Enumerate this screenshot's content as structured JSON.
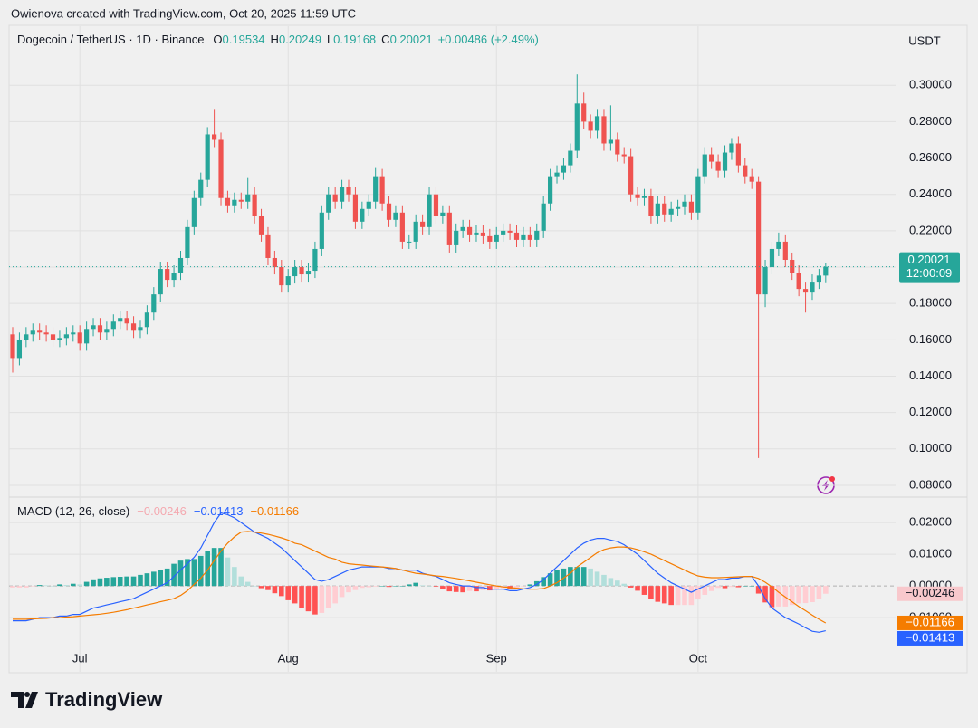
{
  "attribution": "Owienova created with TradingView.com, Oct 20, 2025 11:59 UTC",
  "brand": "TradingView",
  "chart_data": [
    {
      "type": "candlestick",
      "title": "Dogecoin / TetherUS · 1D · Binance",
      "currency": "USDT",
      "ohlc_legend": [
        {
          "label": "O",
          "value": 0.19534
        },
        {
          "label": "H",
          "value": 0.20249
        },
        {
          "label": "L",
          "value": 0.19168
        },
        {
          "label": "C",
          "value": 0.20021
        }
      ],
      "change": "+0.00486 (+2.49%)",
      "countdown": "12:00:09",
      "up_color": "#26a69a",
      "down_color": "#ef5350",
      "grid": true,
      "ylim": [
        0.074,
        0.332
      ],
      "yticks": [
        {
          "value": 0.08,
          "label": "0.08000"
        },
        {
          "value": 0.1,
          "label": "0.10000"
        },
        {
          "value": 0.12,
          "label": "0.12000"
        },
        {
          "value": 0.14,
          "label": "0.14000"
        },
        {
          "value": 0.16,
          "label": "0.16000"
        },
        {
          "value": 0.18,
          "label": "0.18000"
        },
        {
          "value": 0.2,
          "label": "0.20000"
        },
        {
          "value": 0.22,
          "label": "0.22000"
        },
        {
          "value": 0.24,
          "label": "0.24000"
        },
        {
          "value": 0.26,
          "label": "0.26000"
        },
        {
          "value": 0.28,
          "label": "0.28000"
        },
        {
          "value": 0.3,
          "label": "0.30000"
        }
      ],
      "categories": [
        null,
        null,
        null,
        null,
        null,
        null,
        null,
        null,
        null,
        null,
        "Jul",
        null,
        null,
        null,
        null,
        null,
        null,
        null,
        null,
        null,
        null,
        null,
        null,
        null,
        null,
        null,
        null,
        null,
        null,
        null,
        null,
        null,
        null,
        null,
        null,
        null,
        null,
        null,
        null,
        null,
        null,
        "Aug",
        null,
        null,
        null,
        null,
        null,
        null,
        null,
        null,
        null,
        null,
        null,
        null,
        null,
        null,
        null,
        null,
        null,
        null,
        null,
        null,
        null,
        null,
        null,
        null,
        null,
        null,
        null,
        null,
        null,
        null,
        "Sep",
        null,
        null,
        null,
        null,
        null,
        null,
        null,
        null,
        null,
        null,
        null,
        null,
        null,
        null,
        null,
        null,
        null,
        null,
        null,
        null,
        null,
        null,
        null,
        null,
        null,
        null,
        null,
        null,
        null,
        "Oct",
        null,
        null,
        null,
        null,
        null,
        null,
        null,
        null,
        null,
        null,
        null,
        null,
        null,
        null,
        null,
        null,
        null,
        null,
        null
      ],
      "open": [
        0.163,
        0.15,
        0.16,
        0.163,
        0.165,
        0.164,
        0.163,
        0.16,
        0.161,
        0.163,
        0.164,
        0.158,
        0.166,
        0.168,
        0.164,
        0.166,
        0.17,
        0.172,
        0.169,
        0.165,
        0.167,
        0.175,
        0.185,
        0.199,
        0.193,
        0.197,
        0.205,
        0.222,
        0.238,
        0.248,
        0.273,
        0.27,
        0.238,
        0.234,
        0.237,
        0.236,
        0.24,
        0.228,
        0.218,
        0.205,
        0.2,
        0.19,
        0.195,
        0.2,
        0.196,
        0.198,
        0.21,
        0.23,
        0.24,
        0.236,
        0.244,
        0.24,
        0.225,
        0.232,
        0.236,
        0.25,
        0.235,
        0.226,
        0.23,
        0.214,
        0.214,
        0.225,
        0.222,
        0.24,
        0.228,
        0.23,
        0.212,
        0.22,
        0.222,
        0.218,
        0.219,
        0.217,
        0.214,
        0.218,
        0.22,
        0.219,
        0.215,
        0.218,
        0.215,
        0.22,
        0.235,
        0.25,
        0.252,
        0.256,
        0.264,
        0.29,
        0.28,
        0.275,
        0.283,
        0.268,
        0.27,
        0.262,
        0.261,
        0.24,
        0.238,
        0.239,
        0.228,
        0.235,
        0.229,
        0.232,
        0.233,
        0.236,
        0.23,
        0.25,
        0.262,
        0.258,
        0.253,
        0.263,
        0.268,
        0.256,
        0.25,
        0.247,
        0.185,
        0.2,
        0.21,
        0.214,
        0.204,
        0.197,
        0.188,
        0.186,
        0.192,
        0.19534
      ],
      "high": [
        0.167,
        0.164,
        0.167,
        0.169,
        0.169,
        0.168,
        0.167,
        0.165,
        0.167,
        0.168,
        0.168,
        0.17,
        0.172,
        0.172,
        0.17,
        0.174,
        0.176,
        0.176,
        0.173,
        0.171,
        0.179,
        0.189,
        0.203,
        0.203,
        0.201,
        0.209,
        0.226,
        0.242,
        0.252,
        0.277,
        0.287,
        0.274,
        0.242,
        0.241,
        0.241,
        0.249,
        0.244,
        0.232,
        0.222,
        0.209,
        0.204,
        0.199,
        0.204,
        0.204,
        0.202,
        0.214,
        0.234,
        0.244,
        0.244,
        0.248,
        0.248,
        0.244,
        0.236,
        0.24,
        0.255,
        0.254,
        0.239,
        0.234,
        0.234,
        0.218,
        0.229,
        0.229,
        0.244,
        0.244,
        0.234,
        0.234,
        0.224,
        0.226,
        0.226,
        0.223,
        0.223,
        0.221,
        0.222,
        0.224,
        0.224,
        0.223,
        0.222,
        0.222,
        0.224,
        0.239,
        0.254,
        0.256,
        0.26,
        0.268,
        0.306,
        0.296,
        0.284,
        0.287,
        0.287,
        0.289,
        0.274,
        0.266,
        0.265,
        0.244,
        0.243,
        0.243,
        0.239,
        0.239,
        0.236,
        0.237,
        0.24,
        0.24,
        0.254,
        0.266,
        0.266,
        0.262,
        0.267,
        0.271,
        0.272,
        0.26,
        0.254,
        0.25,
        0.204,
        0.214,
        0.219,
        0.218,
        0.208,
        0.201,
        0.192,
        0.196,
        0.199,
        0.20249
      ],
      "low": [
        0.142,
        0.146,
        0.156,
        0.159,
        0.16,
        0.159,
        0.156,
        0.156,
        0.157,
        0.159,
        0.154,
        0.154,
        0.162,
        0.16,
        0.16,
        0.162,
        0.166,
        0.165,
        0.161,
        0.161,
        0.163,
        0.171,
        0.181,
        0.189,
        0.189,
        0.193,
        0.201,
        0.218,
        0.234,
        0.244,
        0.266,
        0.234,
        0.23,
        0.23,
        0.232,
        0.232,
        0.224,
        0.214,
        0.201,
        0.196,
        0.186,
        0.186,
        0.191,
        0.192,
        0.192,
        0.194,
        0.206,
        0.226,
        0.232,
        0.232,
        0.236,
        0.221,
        0.221,
        0.228,
        0.232,
        0.231,
        0.222,
        0.222,
        0.21,
        0.21,
        0.21,
        0.218,
        0.218,
        0.224,
        0.224,
        0.208,
        0.208,
        0.216,
        0.214,
        0.214,
        0.213,
        0.21,
        0.21,
        0.214,
        0.215,
        0.211,
        0.211,
        0.211,
        0.211,
        0.216,
        0.231,
        0.246,
        0.248,
        0.252,
        0.26,
        0.276,
        0.271,
        0.271,
        0.264,
        0.264,
        0.258,
        0.257,
        0.236,
        0.234,
        0.234,
        0.224,
        0.224,
        0.225,
        0.225,
        0.228,
        0.229,
        0.226,
        0.226,
        0.246,
        0.254,
        0.249,
        0.249,
        0.259,
        0.252,
        0.246,
        0.243,
        0.095,
        0.178,
        0.196,
        0.206,
        0.2,
        0.193,
        0.184,
        0.175,
        0.182,
        0.188,
        0.19168
      ],
      "close": [
        0.15,
        0.16,
        0.163,
        0.165,
        0.164,
        0.163,
        0.16,
        0.161,
        0.163,
        0.164,
        0.158,
        0.166,
        0.168,
        0.164,
        0.166,
        0.17,
        0.172,
        0.169,
        0.165,
        0.167,
        0.175,
        0.185,
        0.199,
        0.193,
        0.197,
        0.205,
        0.222,
        0.238,
        0.248,
        0.273,
        0.27,
        0.238,
        0.234,
        0.237,
        0.236,
        0.24,
        0.228,
        0.218,
        0.205,
        0.2,
        0.19,
        0.195,
        0.2,
        0.196,
        0.198,
        0.21,
        0.23,
        0.24,
        0.236,
        0.244,
        0.24,
        0.225,
        0.232,
        0.236,
        0.25,
        0.235,
        0.226,
        0.23,
        0.214,
        0.214,
        0.225,
        0.222,
        0.24,
        0.228,
        0.23,
        0.212,
        0.22,
        0.222,
        0.218,
        0.219,
        0.217,
        0.214,
        0.218,
        0.22,
        0.219,
        0.215,
        0.218,
        0.215,
        0.22,
        0.235,
        0.25,
        0.252,
        0.256,
        0.264,
        0.29,
        0.28,
        0.275,
        0.283,
        0.268,
        0.27,
        0.262,
        0.261,
        0.24,
        0.238,
        0.239,
        0.228,
        0.235,
        0.229,
        0.232,
        0.233,
        0.236,
        0.23,
        0.25,
        0.262,
        0.258,
        0.253,
        0.263,
        0.268,
        0.256,
        0.25,
        0.247,
        0.185,
        0.2,
        0.21,
        0.214,
        0.204,
        0.197,
        0.188,
        0.186,
        0.192,
        0.19534,
        0.20021
      ]
    },
    {
      "type": "macd",
      "title": "MACD (12, 26, close)",
      "ylim": [
        -0.0271,
        0.0269
      ],
      "yticks": [
        {
          "value": -0.01,
          "label": "-0.01000"
        },
        {
          "value": 0,
          "label": "0.00000"
        },
        {
          "value": 0.01,
          "label": "0.01000"
        },
        {
          "value": 0.02,
          "label": "0.02000"
        }
      ],
      "histogram": {
        "value_label": "−0.00246",
        "colors": [
          "#26a69a",
          "#b2dfdb",
          "#ffcdd2",
          "#ff5252"
        ],
        "values": [
          -0.0005,
          -0.0005,
          -0.0005,
          -0.0001,
          0.0003,
          0.0002,
          0,
          0.0005,
          0.0003,
          0.0007,
          0.0005,
          0.0013,
          0.0021,
          0.0024,
          0.0026,
          0.0028,
          0.0029,
          0.003,
          0.003,
          0.0035,
          0.004,
          0.0045,
          0.005,
          0.0055,
          0.007,
          0.008,
          0.0085,
          0.0085,
          0.0095,
          0.011,
          0.012,
          0.012,
          0.009,
          0.006,
          0.003,
          0.0013,
          0,
          -0.0007,
          -0.0013,
          -0.0023,
          -0.0032,
          -0.0045,
          -0.0055,
          -0.007,
          -0.008,
          -0.009,
          -0.0085,
          -0.007,
          -0.0055,
          -0.0035,
          -0.002,
          -0.0013,
          -0.0006,
          -0.0004,
          -0.0002,
          0,
          -0.0003,
          0,
          0,
          0.0005,
          0.001,
          0.0002,
          0,
          -0.0002,
          -0.001,
          -0.0017,
          -0.0019,
          -0.002,
          -0.0016,
          -0.0017,
          -0.0013,
          -0.0014,
          -0.001,
          -0.0007,
          -0.001,
          -0.0008,
          -0.0001,
          0.0005,
          0.0015,
          0.0028,
          0.004,
          0.005,
          0.0055,
          0.006,
          0.006,
          0.006,
          0.0055,
          0.0045,
          0.0035,
          0.0025,
          0.0017,
          0.0007,
          -0.0005,
          -0.0015,
          -0.0028,
          -0.004,
          -0.005,
          -0.0055,
          -0.006,
          -0.006,
          -0.006,
          -0.006,
          -0.0042,
          -0.0028,
          -0.0016,
          -0.0006,
          -0.0007,
          -0.0003,
          -0.0004,
          0,
          0,
          -0.0024,
          -0.0052,
          -0.0067,
          -0.0065,
          -0.0065,
          -0.006,
          -0.0055,
          -0.0054,
          -0.0051,
          -0.0041,
          -0.00246
        ]
      },
      "series": [
        {
          "color": "#2962ff",
          "value_label": "−0.01413",
          "values": [
            -0.011,
            -0.011,
            -0.011,
            -0.0105,
            -0.01,
            -0.01,
            -0.01,
            -0.0095,
            -0.0095,
            -0.009,
            -0.009,
            -0.008,
            -0.007,
            -0.0065,
            -0.006,
            -0.0055,
            -0.005,
            -0.0045,
            -0.004,
            -0.003,
            -0.002,
            -0.001,
            0,
            0.001,
            0.003,
            0.005,
            0.007,
            0.009,
            0.012,
            0.016,
            0.02,
            0.023,
            0.0225,
            0.0215,
            0.02,
            0.0185,
            0.017,
            0.016,
            0.015,
            0.0135,
            0.012,
            0.01,
            0.008,
            0.006,
            0.004,
            0.002,
            0.0015,
            0.002,
            0.003,
            0.004,
            0.005,
            0.0055,
            0.006,
            0.006,
            0.006,
            0.006,
            0.0055,
            0.0055,
            0.005,
            0.005,
            0.005,
            0.004,
            0.0035,
            0.003,
            0.002,
            0.001,
            0.0005,
            0,
            0,
            -0.0005,
            -0.0005,
            -0.001,
            -0.001,
            -0.001,
            -0.0015,
            -0.0015,
            -0.001,
            -0.0005,
            0.0005,
            0.002,
            0.004,
            0.006,
            0.008,
            0.01,
            0.012,
            0.0135,
            0.0145,
            0.015,
            0.015,
            0.0145,
            0.014,
            0.013,
            0.0115,
            0.01,
            0.008,
            0.006,
            0.004,
            0.0025,
            0.001,
            0,
            -0.001,
            -0.002,
            -0.001,
            0,
            0.001,
            0.002,
            0.002,
            0.0025,
            0.0025,
            0.003,
            0.003,
            0,
            -0.004,
            -0.007,
            -0.0085,
            -0.01,
            -0.011,
            -0.012,
            -0.0132,
            -0.0143,
            -0.0146,
            -0.01413
          ]
        },
        {
          "color": "#f57c00",
          "value_label": "−0.01166",
          "values": [
            -0.0105,
            -0.0105,
            -0.0105,
            -0.0104,
            -0.0103,
            -0.0102,
            -0.01,
            -0.01,
            -0.0098,
            -0.0097,
            -0.0095,
            -0.0093,
            -0.0091,
            -0.0089,
            -0.0086,
            -0.0083,
            -0.0079,
            -0.0075,
            -0.007,
            -0.0065,
            -0.006,
            -0.0055,
            -0.005,
            -0.0045,
            -0.004,
            -0.003,
            -0.0015,
            0.0005,
            0.0025,
            0.005,
            0.008,
            0.011,
            0.0135,
            0.0155,
            0.017,
            0.0172,
            0.017,
            0.0167,
            0.0163,
            0.0158,
            0.0152,
            0.0145,
            0.0135,
            0.013,
            0.012,
            0.011,
            0.01,
            0.009,
            0.0085,
            0.0075,
            0.007,
            0.0068,
            0.0066,
            0.0064,
            0.0062,
            0.006,
            0.0058,
            0.0055,
            0.005,
            0.0045,
            0.004,
            0.0038,
            0.0035,
            0.0032,
            0.003,
            0.0027,
            0.0024,
            0.002,
            0.0016,
            0.0012,
            0.0008,
            0.0004,
            0,
            -0.0003,
            -0.0005,
            -0.0007,
            -0.0009,
            -0.001,
            -0.001,
            -0.0008,
            0,
            0.001,
            0.0025,
            0.004,
            0.006,
            0.0075,
            0.009,
            0.0105,
            0.0115,
            0.012,
            0.0123,
            0.0123,
            0.012,
            0.0115,
            0.0108,
            0.01,
            0.009,
            0.008,
            0.007,
            0.006,
            0.005,
            0.004,
            0.0032,
            0.0028,
            0.0026,
            0.0026,
            0.0027,
            0.0028,
            0.0029,
            0.003,
            0.003,
            0.0024,
            0.0012,
            -0.0003,
            -0.002,
            -0.0035,
            -0.005,
            -0.0065,
            -0.0078,
            -0.0092,
            -0.0105,
            -0.01166
          ]
        }
      ]
    }
  ]
}
